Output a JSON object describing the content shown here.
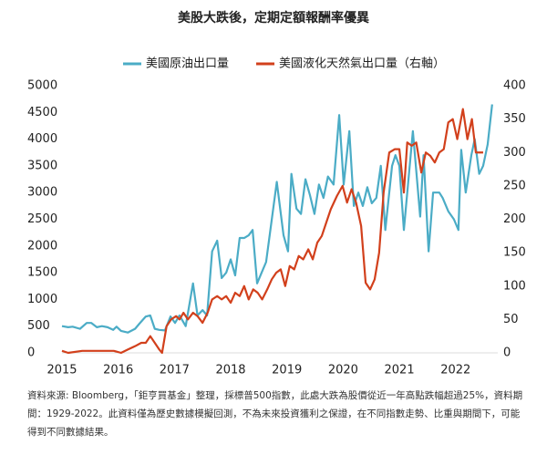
{
  "chart_data": {
    "type": "line",
    "title": "美股大跌後，定期定額報酬率優異",
    "notes": [
      "資料來源: Bloomberg，「鉅亨買基金」整理，採標普500指數，此處大跌為股價從近一年高點跌幅超過25%，資料期",
      "間：1929-2022。此資料僅為歷史數據模擬回測，不為未來投資獲利之保證，在不同指數走勢、比重與期間下，可能",
      "得到不同數據結果。"
    ],
    "xlim": [
      2015,
      2022.75
    ],
    "xticks": [
      2015,
      2016,
      2017,
      2018,
      2019,
      2020,
      2021,
      2022
    ],
    "ylim": [
      0,
      5000
    ],
    "yticks": [
      0,
      500,
      1000,
      1500,
      2000,
      2500,
      3000,
      3500,
      4000,
      4500,
      5000
    ],
    "y2lim": [
      0,
      400
    ],
    "y2ticks": [
      0,
      50,
      100,
      150,
      200,
      250,
      300,
      350,
      400
    ],
    "grid": false,
    "legend": "top",
    "series": [
      {
        "name": "美國原油出口量",
        "color": "#4bacc6",
        "x": [
          2015.0,
          2015.11,
          2015.19,
          2015.32,
          2015.44,
          2015.52,
          2015.62,
          2015.71,
          2015.81,
          2015.91,
          2015.97,
          2016.05,
          2016.17,
          2016.3,
          2016.38,
          2016.49,
          2016.57,
          2016.65,
          2016.73,
          2016.83,
          2016.93,
          2017.01,
          2017.09,
          2017.2,
          2017.33,
          2017.41,
          2017.5,
          2017.58,
          2017.67,
          2017.76,
          2017.84,
          2017.92,
          2018.0,
          2018.08,
          2018.16,
          2018.24,
          2018.32,
          2018.39,
          2018.47,
          2018.55,
          2018.63,
          2018.82,
          2018.94,
          2019.02,
          2019.08,
          2019.17,
          2019.25,
          2019.33,
          2019.41,
          2019.49,
          2019.57,
          2019.65,
          2019.73,
          2019.83,
          2019.93,
          2020.01,
          2020.11,
          2020.19,
          2020.27,
          2020.35,
          2020.43,
          2020.51,
          2020.59,
          2020.67,
          2020.75,
          2020.87,
          2020.93,
          2021.0,
          2021.08,
          2021.24,
          2021.37,
          2021.43,
          2021.52,
          2021.6,
          2021.71,
          2021.77,
          2021.87,
          2021.97,
          2022.05,
          2022.1,
          2022.18,
          2022.28,
          2022.34,
          2022.42,
          2022.49,
          2022.57,
          2022.65
        ],
        "values": [
          500,
          480,
          490,
          450,
          560,
          560,
          480,
          500,
          480,
          430,
          490,
          410,
          380,
          450,
          550,
          680,
          700,
          450,
          430,
          420,
          680,
          560,
          700,
          500,
          1300,
          700,
          800,
          700,
          1900,
          2100,
          1400,
          1500,
          1750,
          1450,
          2150,
          2150,
          2200,
          2300,
          1300,
          1500,
          1700,
          3200,
          2200,
          1900,
          3350,
          2700,
          2600,
          3250,
          2950,
          2600,
          3150,
          2900,
          3300,
          3150,
          4450,
          3150,
          4150,
          2750,
          3000,
          2750,
          3100,
          2800,
          2900,
          3500,
          2300,
          3500,
          3700,
          3500,
          2300,
          4150,
          2550,
          3700,
          1900,
          3000,
          3000,
          2900,
          2650,
          2500,
          2300,
          3800,
          3000,
          3700,
          4000,
          3350,
          3500,
          3900,
          4650
        ]
      },
      {
        "name": "美國液化天然氣出口量（右軸）",
        "color": "#d2401c",
        "axis": "y2",
        "x": [
          2015.0,
          2015.11,
          2015.36,
          2015.68,
          2015.92,
          2016.05,
          2016.17,
          2016.3,
          2016.41,
          2016.49,
          2016.57,
          2016.65,
          2016.73,
          2016.78,
          2016.86,
          2016.94,
          2017.03,
          2017.09,
          2017.16,
          2017.24,
          2017.33,
          2017.41,
          2017.5,
          2017.59,
          2017.67,
          2017.76,
          2017.84,
          2017.92,
          2018.0,
          2018.08,
          2018.16,
          2018.24,
          2018.32,
          2018.4,
          2018.48,
          2018.56,
          2018.65,
          2018.73,
          2018.81,
          2018.89,
          2018.97,
          2019.05,
          2019.13,
          2019.21,
          2019.29,
          2019.38,
          2019.46,
          2019.54,
          2019.62,
          2019.7,
          2019.78,
          2019.89,
          2019.99,
          2020.07,
          2020.15,
          2020.23,
          2020.32,
          2020.4,
          2020.48,
          2020.56,
          2020.64,
          2020.72,
          2020.82,
          2020.92,
          2021.0,
          2021.08,
          2021.14,
          2021.22,
          2021.3,
          2021.39,
          2021.47,
          2021.55,
          2021.63,
          2021.71,
          2021.79,
          2021.87,
          2021.95,
          2022.03,
          2022.13,
          2022.21,
          2022.29,
          2022.36,
          2022.49
        ],
        "values": [
          3,
          0,
          3,
          3,
          3,
          0,
          5,
          10,
          15,
          15,
          25,
          15,
          5,
          0,
          40,
          50,
          55,
          50,
          60,
          50,
          60,
          55,
          45,
          60,
          80,
          85,
          80,
          85,
          75,
          90,
          85,
          100,
          80,
          95,
          90,
          80,
          95,
          110,
          120,
          125,
          100,
          130,
          125,
          145,
          140,
          155,
          140,
          165,
          175,
          195,
          215,
          235,
          250,
          225,
          245,
          225,
          190,
          105,
          95,
          110,
          150,
          240,
          300,
          305,
          305,
          240,
          315,
          310,
          315,
          270,
          300,
          295,
          285,
          300,
          305,
          345,
          350,
          320,
          365,
          320,
          350,
          300,
          300
        ]
      }
    ]
  }
}
